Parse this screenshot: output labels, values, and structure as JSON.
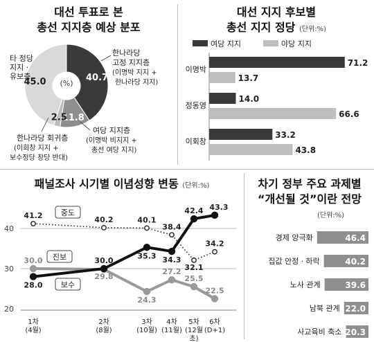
{
  "pie_panel": {
    "title_line1": "대선 투표로 본",
    "title_line2": "총선 지지층 예상 분포",
    "center_label": "(%)",
    "annotations": [
      {
        "l1": "한나라당",
        "l2": "고정 지지층",
        "l3": "(이명박 지지 +",
        "l4": "한나라당 지지)"
      },
      {
        "l1": "여당 지지층",
        "l2": "(이명박 비지지 +",
        "l3": "총선 여당 지지)"
      },
      {
        "l1": "한나라당 회귀층",
        "l2": "(이회창 지지 +",
        "l3": "보수정당 창당 반대)"
      },
      {
        "l1": "타 정당",
        "l2": "지지ㆍ",
        "l3": "유보층"
      }
    ]
  },
  "hbar_panel": {
    "title_line1": "대선 지지 후보별",
    "title_line2": "총선 지지 정당",
    "unit": "(단위:%)",
    "legend": [
      "여당 지지",
      "야당 지지"
    ]
  },
  "line_panel": {
    "title": "패널조사 시기별 이념성향 변동",
    "unit": "(단위:%)"
  },
  "task_panel": {
    "title_line1": "차기 정부 주요 과제별",
    "title_line2": "“개선될 것”이란 전망",
    "unit": "(단위:%)"
  },
  "colors": {
    "dark": "#3a3a3a",
    "mid": "#8f8f8f",
    "light": "#bdbdbd",
    "pale": "#d9d9d9"
  },
  "chart_data": [
    {
      "type": "pie",
      "title": "대선 투표로 본 총선 지지층 예상 분포",
      "unit": "%",
      "slices": [
        {
          "label": "한나라당 고정 지지층",
          "value": 40.7,
          "value_label": "40.7"
        },
        {
          "label": "여당 지지층",
          "value": 11.8,
          "value_label": "11.8"
        },
        {
          "label": "한나라당 회귀층",
          "value": 2.5,
          "value_label": "2.5"
        },
        {
          "label": "타 정당 지지ㆍ유보층",
          "value": 45.0,
          "value_label": "45.0"
        }
      ]
    },
    {
      "type": "bar",
      "title": "대선 지지 후보별 총선 지지 정당",
      "categories": [
        "이명박",
        "정동영",
        "이회창"
      ],
      "series": [
        {
          "name": "여당 지지",
          "values": [
            71.2,
            14.0,
            33.2
          ],
          "labels": [
            "71.2",
            "14.0",
            "33.2"
          ]
        },
        {
          "name": "야당 지지",
          "values": [
            13.7,
            66.6,
            43.8
          ],
          "labels": [
            "13.7",
            "66.6",
            "43.8"
          ]
        }
      ],
      "xlim": [
        0,
        80
      ]
    },
    {
      "type": "line",
      "title": "패널조사 시기별 이념성향 변동",
      "ylim": [
        20,
        45
      ],
      "yticks": [
        "40",
        "30",
        "20"
      ],
      "x": [
        {
          "l1": "1차",
          "l2": "(4월)",
          "pos": 1
        },
        {
          "l1": "2차",
          "l2": "(8월)",
          "pos": 2.6
        },
        {
          "l1": "3차",
          "l2": "(10월)",
          "pos": 3.2
        },
        {
          "l1": "4차",
          "l2": "(11월)",
          "pos": 3.6
        },
        {
          "l1": "5차",
          "l2": "(12월",
          "l3": "초)",
          "pos": 3.9
        },
        {
          "l1": "6차",
          "l2": "(D+1)",
          "pos": 4.2
        }
      ],
      "series": [
        {
          "name": "중도",
          "values": [
            41.2,
            40.2,
            40.1,
            38.4,
            32.1,
            34.2
          ],
          "labels": [
            "41.2",
            "40.2",
            "40.1",
            "38.4",
            "32.1",
            "34.2"
          ],
          "style": "dotted"
        },
        {
          "name": "진보",
          "values": [
            28.0,
            30.0,
            35.3,
            34.3,
            42.4,
            43.3
          ],
          "labels": [
            "28.0",
            "30.0",
            "35.3",
            "34.3",
            "42.4",
            "43.3"
          ],
          "style": "dark"
        },
        {
          "name": "보수",
          "values": [
            30.0,
            29.8,
            24.3,
            27.2,
            25.5,
            22.5
          ],
          "labels": [
            "30.0",
            "29.8",
            "24.3",
            "27.2",
            "25.5",
            "22.5"
          ],
          "style": "gray"
        }
      ]
    },
    {
      "type": "bar",
      "title": "차기 정부 주요 과제별 “개선될 것”이란 전망",
      "categories": [
        "경제 양극화",
        "집값 안정ㆍ하락",
        "노사 관계",
        "남북 관계",
        "사교육비 축소"
      ],
      "values": [
        46.4,
        40.2,
        39.6,
        22.0,
        20.3
      ],
      "labels": [
        "46.4",
        "40.2",
        "39.6",
        "22.0",
        "20.3"
      ],
      "xlim": [
        0,
        50
      ]
    }
  ]
}
